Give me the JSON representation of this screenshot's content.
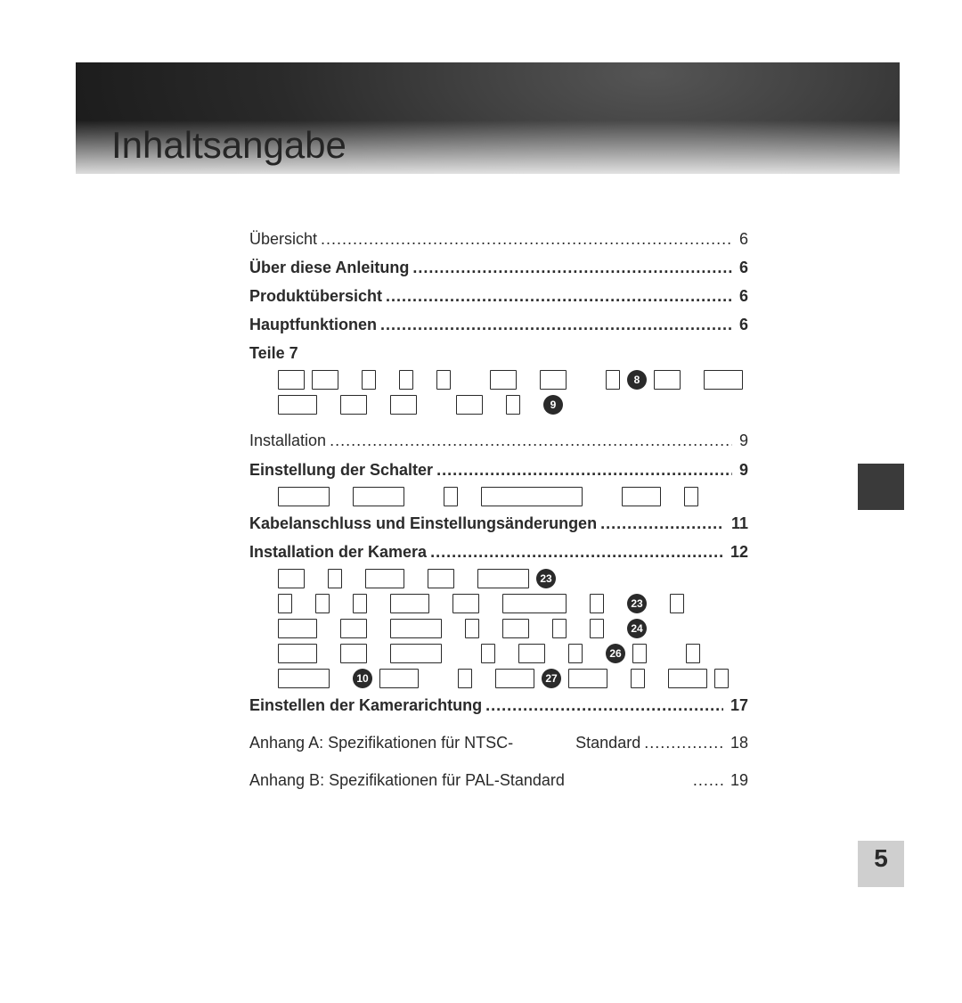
{
  "banner": {
    "title": "Inhaltsangabe"
  },
  "page_number": "5",
  "colors": {
    "text": "#2a2a2a",
    "side_tab": "#3a3a3a",
    "pagenum_bg": "#cfcfcf",
    "page_bg": "#ffffff"
  },
  "toc": {
    "uebersicht": {
      "label": "Übersicht",
      "page": "6"
    },
    "ueber_anleitung": {
      "label": "Über diese Anleitung",
      "page": "6"
    },
    "produktuebersicht": {
      "label": "Produktübersicht",
      "page": "6"
    },
    "hauptfunktionen": {
      "label": "Hauptfunktionen",
      "page": "6"
    },
    "teile": {
      "label": "Teile 7"
    },
    "installation": {
      "label": "Installation",
      "page": "9"
    },
    "einstellung_schalter": {
      "label": "Einstellung der Schalter",
      "page": "9"
    },
    "kabelanschluss": {
      "label": "Kabelanschluss und Einstellungsänderungen",
      "page": "11"
    },
    "installation_kamera": {
      "label": "Installation der Kamera",
      "page": "12"
    },
    "einstellen_richtung": {
      "label": "Einstellen der Kamerarichtung",
      "page": "17"
    },
    "anhang_a_pre": "Anhang A: Spezifikationen für NTSC-",
    "anhang_a_mid": "Standard",
    "anhang_a_page": "18",
    "anhang_b_pre": "Anhang B: Spezifikationen für PAL-Standard",
    "anhang_b_page": "19"
  },
  "glyph_style": {
    "glyph_border_color": "#2a2a2a",
    "glyph_border_width": 1.5,
    "glyph_border_radius": 1,
    "glyph_height": 20,
    "circle_bg": "#2a2a2a",
    "circle_fg": "#ffffff",
    "circle_diameter": 22,
    "circle_fontsize": 12
  },
  "glyph_rows": {
    "teile_r1": {
      "glyph_groups": [
        28,
        28,
        0,
        14,
        0,
        14,
        0,
        14,
        0,
        0,
        28,
        0,
        28,
        0,
        0,
        14
      ],
      "circle_after": "8",
      "tail_glyphs": [
        28,
        0,
        42
      ]
    },
    "teile_r2": {
      "glyph_groups": [
        42,
        0,
        28,
        0,
        28,
        0,
        0,
        28,
        0,
        14,
        0
      ],
      "circle_after": "9"
    },
    "schalter_r1": {
      "glyph_groups": [
        56,
        0,
        56,
        0,
        0,
        14,
        0,
        112,
        0,
        0,
        42,
        0,
        14
      ]
    },
    "kamera_r1": {
      "glyph_groups": [
        28,
        0,
        14,
        0,
        42,
        0,
        28,
        0,
        56
      ],
      "circle_after": "23"
    },
    "kamera_r2": {
      "glyph_groups": [
        14,
        0,
        14,
        0,
        14,
        0,
        42,
        0,
        28,
        0,
        70,
        0,
        14,
        0
      ],
      "circle_after": "23",
      "tail_glyphs": [
        0,
        14
      ]
    },
    "kamera_r3": {
      "glyph_groups": [
        42,
        0,
        28,
        0,
        56,
        0,
        14,
        0,
        28,
        0,
        14,
        0,
        14,
        0
      ],
      "circle_after": "24"
    },
    "kamera_r4": {
      "glyph_groups": [
        42,
        0,
        28,
        0,
        56,
        0,
        0,
        14,
        0,
        28,
        0,
        14,
        0
      ],
      "circle_after": "26",
      "tail_glyphs": [
        14,
        0,
        0,
        14
      ]
    },
    "kamera_r5": {
      "glyph_groups": [
        56,
        0
      ],
      "mid_circle": "10",
      "mid_glyphs": [
        42,
        0,
        0,
        14,
        0,
        42
      ],
      "circle_after": "27",
      "tail_glyphs": [
        42,
        0,
        14,
        0,
        42,
        14
      ]
    }
  }
}
